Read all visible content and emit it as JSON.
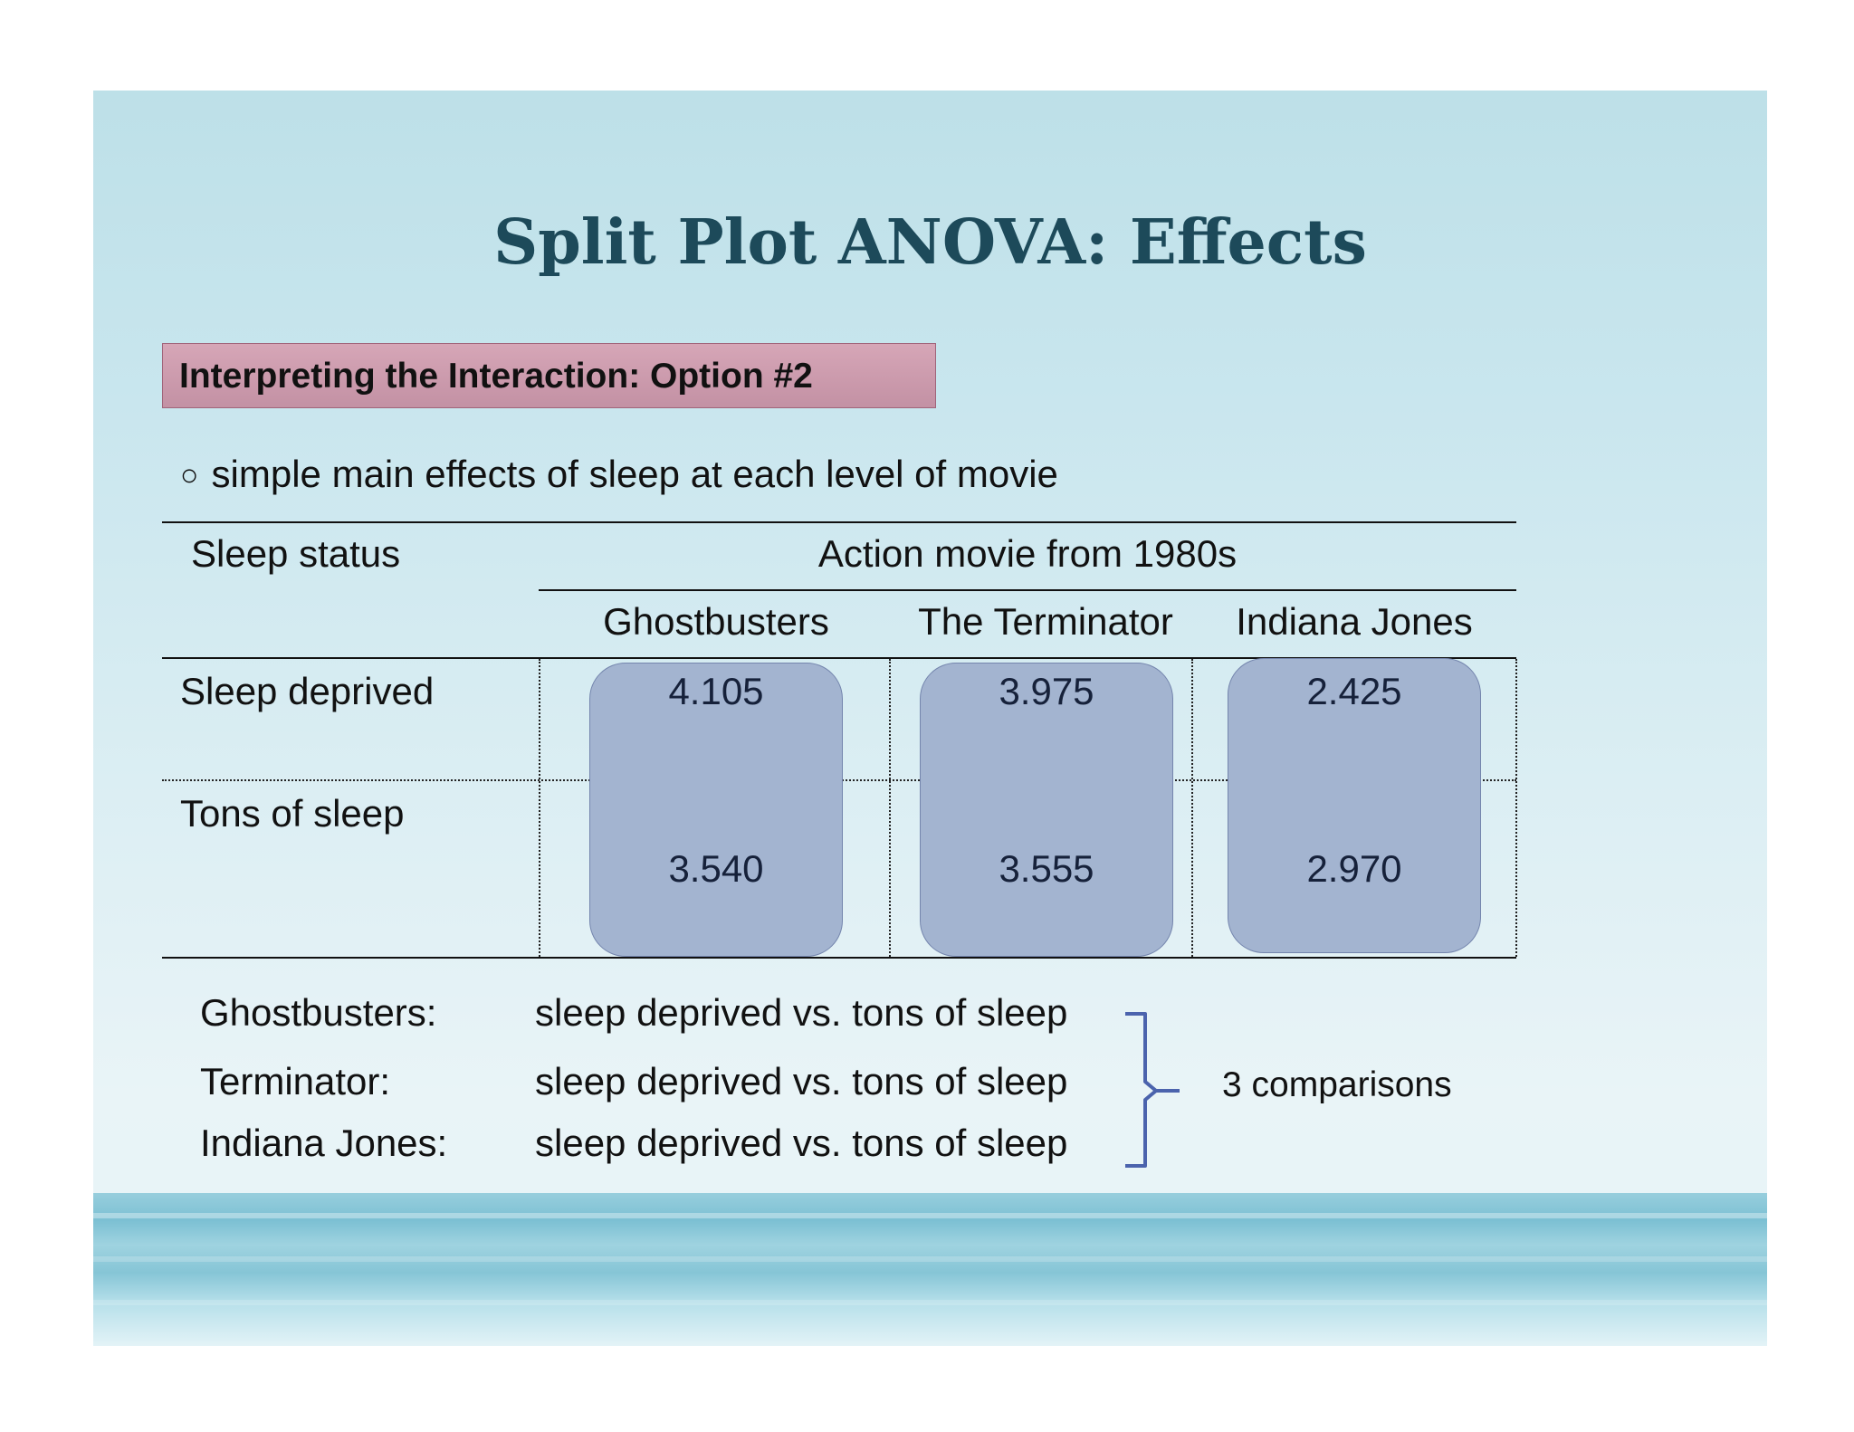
{
  "slide": {
    "title": "Split Plot ANOVA: Effects",
    "heading": "Interpreting the Interaction: Option #2",
    "bullet_mark": "○",
    "bullet": "simple main effects of sleep at each level of movie"
  },
  "table": {
    "row_header": "Sleep status",
    "group_header": "Action movie from 1980s",
    "columns": [
      "Ghostbusters",
      "The Terminator",
      "Indiana Jones"
    ],
    "rows": [
      {
        "label": "Sleep deprived",
        "values": [
          "4.105",
          "3.975",
          "2.425"
        ]
      },
      {
        "label": "Tons of sleep",
        "values": [
          "3.540",
          "3.555",
          "2.970"
        ]
      }
    ]
  },
  "comparisons": {
    "items": [
      {
        "label": "Ghostbusters:",
        "text": "sleep deprived vs. tons of sleep"
      },
      {
        "label": "Terminator:",
        "text": "sleep deprived vs. tons of sleep"
      },
      {
        "label": "Indiana Jones:",
        "text": "sleep deprived vs. tons of sleep"
      }
    ],
    "summary": "3 comparisons"
  },
  "colors": {
    "title": "#1d4a5a",
    "heading_box": "#c99aad",
    "cell_box": "#a3b4d0",
    "brace": "#4b63ad"
  }
}
